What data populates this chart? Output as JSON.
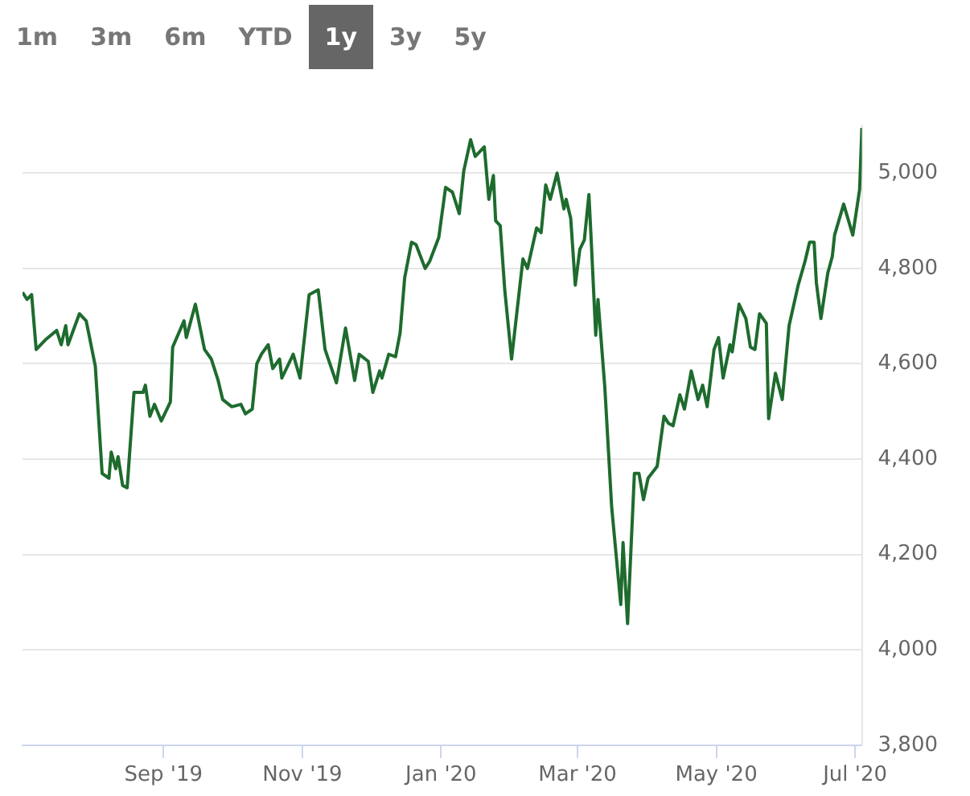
{
  "chart_data": {
    "type": "line",
    "annotations": [
      "1m",
      "3m",
      "6m",
      "YTD",
      "1y",
      "3y",
      "5y"
    ],
    "x": [
      "2019-07-01",
      "2019-07-03",
      "2019-07-05",
      "2019-07-07",
      "2019-07-11",
      "2019-07-16",
      "2019-07-18",
      "2019-07-20",
      "2019-07-21",
      "2019-07-26",
      "2019-07-29",
      "2019-08-02",
      "2019-08-05",
      "2019-08-08",
      "2019-08-09",
      "2019-08-11",
      "2019-08-12",
      "2019-08-14",
      "2019-08-16",
      "2019-08-19",
      "2019-08-23",
      "2019-08-24",
      "2019-08-26",
      "2019-08-28",
      "2019-08-31",
      "2019-09-04",
      "2019-09-05",
      "2019-09-10",
      "2019-09-11",
      "2019-09-15",
      "2019-09-19",
      "2019-09-22",
      "2019-09-25",
      "2019-09-27",
      "2019-10-01",
      "2019-10-05",
      "2019-10-07",
      "2019-10-10",
      "2019-10-12",
      "2019-10-14",
      "2019-10-17",
      "2019-10-19",
      "2019-10-22",
      "2019-10-23",
      "2019-10-28",
      "2019-10-31",
      "2019-11-04",
      "2019-11-08",
      "2019-11-11",
      "2019-11-16",
      "2019-11-20",
      "2019-11-24",
      "2019-11-26",
      "2019-11-30",
      "2019-12-02",
      "2019-12-05",
      "2019-12-06",
      "2019-12-09",
      "2019-12-12",
      "2019-12-14",
      "2019-12-16",
      "2019-12-19",
      "2019-12-21",
      "2019-12-25",
      "2019-12-27",
      "2019-12-31",
      "2020-01-01",
      "2020-01-03",
      "2020-01-06",
      "2020-01-09",
      "2020-01-11",
      "2020-01-14",
      "2020-01-16",
      "2020-01-20",
      "2020-01-22",
      "2020-01-24",
      "2020-01-25",
      "2020-01-27",
      "2020-01-29",
      "2020-02-01",
      "2020-02-06",
      "2020-02-08",
      "2020-02-12",
      "2020-02-14",
      "2020-02-16",
      "2020-02-18",
      "2020-02-21",
      "2020-02-24",
      "2020-02-25",
      "2020-02-27",
      "2020-02-29",
      "2020-03-02",
      "2020-03-04",
      "2020-03-06",
      "2020-03-07",
      "2020-03-09",
      "2020-03-10",
      "2020-03-13",
      "2020-03-16",
      "2020-03-20",
      "2020-03-21",
      "2020-03-23",
      "2020-03-26",
      "2020-03-28",
      "2020-03-30",
      "2020-04-01",
      "2020-04-05",
      "2020-04-08",
      "2020-04-10",
      "2020-04-12",
      "2020-04-15",
      "2020-04-17",
      "2020-04-20",
      "2020-04-23",
      "2020-04-25",
      "2020-04-27",
      "2020-04-30",
      "2020-05-02",
      "2020-05-04",
      "2020-05-07",
      "2020-05-08",
      "2020-05-11",
      "2020-05-14",
      "2020-05-16",
      "2020-05-18",
      "2020-05-20",
      "2020-05-23",
      "2020-05-24",
      "2020-05-27",
      "2020-05-30",
      "2020-06-02",
      "2020-06-06",
      "2020-06-09",
      "2020-06-11",
      "2020-06-13",
      "2020-06-14",
      "2020-06-16",
      "2020-06-19",
      "2020-06-21",
      "2020-06-22",
      "2020-06-26",
      "2020-06-30",
      "2020-07-03",
      "2020-07-04"
    ],
    "series": [
      {
        "color": "#1e6b2e",
        "values": [
          4750,
          4735,
          4745,
          4630,
          4650,
          4670,
          4640,
          4680,
          4640,
          4705,
          4690,
          4595,
          4370,
          4360,
          4415,
          4380,
          4405,
          4345,
          4340,
          4540,
          4540,
          4555,
          4490,
          4515,
          4480,
          4520,
          4635,
          4690,
          4655,
          4725,
          4630,
          4610,
          4565,
          4525,
          4510,
          4515,
          4495,
          4505,
          4600,
          4620,
          4640,
          4590,
          4610,
          4570,
          4620,
          4570,
          4745,
          4755,
          4630,
          4560,
          4675,
          4565,
          4620,
          4605,
          4540,
          4585,
          4570,
          4620,
          4615,
          4665,
          4780,
          4855,
          4850,
          4800,
          4815,
          4865,
          4900,
          4970,
          4960,
          4915,
          5005,
          5070,
          5035,
          5055,
          4945,
          4995,
          4900,
          4890,
          4755,
          4610,
          4820,
          4800,
          4885,
          4875,
          4975,
          4945,
          5000,
          4925,
          4945,
          4905,
          4765,
          4840,
          4860,
          4955,
          4860,
          4660,
          4735,
          4550,
          4300,
          4095,
          4225,
          4055,
          4370,
          4370,
          4315,
          4360,
          4385,
          4490,
          4475,
          4470,
          4535,
          4505,
          4585,
          4525,
          4555,
          4510,
          4630,
          4655,
          4570,
          4640,
          4625,
          4725,
          4695,
          4635,
          4630,
          4705,
          4685,
          4485,
          4580,
          4525,
          4680,
          4765,
          4815,
          4855,
          4855,
          4770,
          4695,
          4790,
          4825,
          4870,
          4935,
          4870,
          4965,
          5095
        ]
      }
    ],
    "xlim": [
      "2019-07-01",
      "2020-07-04"
    ],
    "xticks": [
      {
        "value": "2019-09-01",
        "label": "Sep '19"
      },
      {
        "value": "2019-11-01",
        "label": "Nov '19"
      },
      {
        "value": "2020-01-01",
        "label": "Jan '20"
      },
      {
        "value": "2020-03-01",
        "label": "Mar '20"
      },
      {
        "value": "2020-05-01",
        "label": "May '20"
      },
      {
        "value": "2020-07-01",
        "label": "Jul '20"
      }
    ],
    "ylim": [
      3800,
      5100
    ],
    "yticks": [
      {
        "value": 3800,
        "label": "3,800"
      },
      {
        "value": 4000,
        "label": "4,000"
      },
      {
        "value": 4200,
        "label": "4,200"
      },
      {
        "value": 4400,
        "label": "4,400"
      },
      {
        "value": 4600,
        "label": "4,600"
      },
      {
        "value": 4800,
        "label": "4,800"
      },
      {
        "value": 5000,
        "label": "5,000"
      }
    ],
    "grid": "y",
    "legend": false,
    "marker": "none",
    "line_style": "solid"
  }
}
